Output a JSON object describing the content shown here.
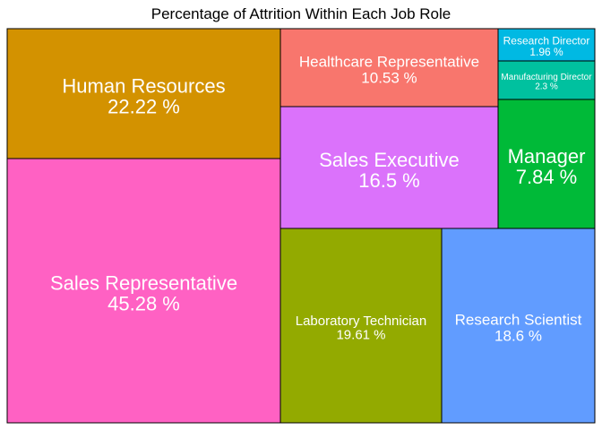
{
  "chart_data": {
    "type": "treemap",
    "title": "Percentage of Attrition Within Each Job Role",
    "unit_suffix": " %",
    "tiles": [
      {
        "name": "Sales Representative",
        "value": 45.28,
        "color": "#FF61C3"
      },
      {
        "name": "Human Resources",
        "value": 22.22,
        "color": "#D39200"
      },
      {
        "name": "Laboratory Technician",
        "value": 19.61,
        "color": "#93AA00"
      },
      {
        "name": "Research Scientist",
        "value": 18.6,
        "color": "#619CFF"
      },
      {
        "name": "Sales Executive",
        "value": 16.5,
        "color": "#DB72FB"
      },
      {
        "name": "Healthcare Representative",
        "value": 10.53,
        "color": "#F8766D"
      },
      {
        "name": "Manager",
        "value": 7.84,
        "color": "#00BA38"
      },
      {
        "name": "Manufacturing Director",
        "value": 2.3,
        "color": "#00C19F"
      },
      {
        "name": "Research Director",
        "value": 1.96,
        "color": "#00B9E3"
      }
    ]
  }
}
